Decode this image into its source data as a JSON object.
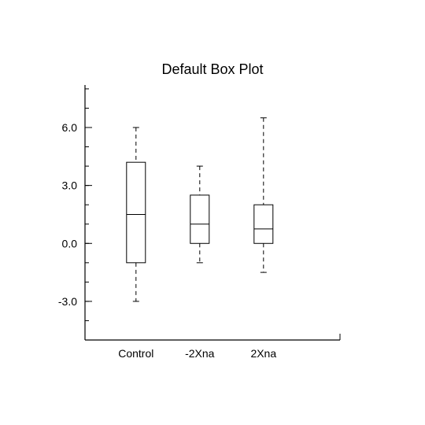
{
  "chart_data": {
    "type": "box",
    "title": "Default Box Plot",
    "xlabel": "",
    "ylabel": "",
    "ylim": [
      -5.0,
      8.2
    ],
    "yticks": [
      -3.0,
      0.0,
      3.0,
      6.0
    ],
    "ytick_labels": [
      "-3.0",
      "0.0",
      "3.0",
      "6.0"
    ],
    "yminor_step": 1.0,
    "grid": false,
    "categories": [
      "Control",
      "-2Xna",
      "2Xna"
    ],
    "boxes": [
      {
        "name": "Control",
        "whisker_low": -3.0,
        "q1": -1.0,
        "median": 1.5,
        "q3": 4.2,
        "whisker_high": 6.0
      },
      {
        "name": "-2Xna",
        "whisker_low": -1.0,
        "q1": 0.0,
        "median": 1.0,
        "q3": 2.5,
        "whisker_high": 4.0
      },
      {
        "name": "2Xna",
        "whisker_low": -1.5,
        "q1": 0.0,
        "median": 0.75,
        "q3": 2.0,
        "whisker_high": 6.5
      }
    ]
  }
}
